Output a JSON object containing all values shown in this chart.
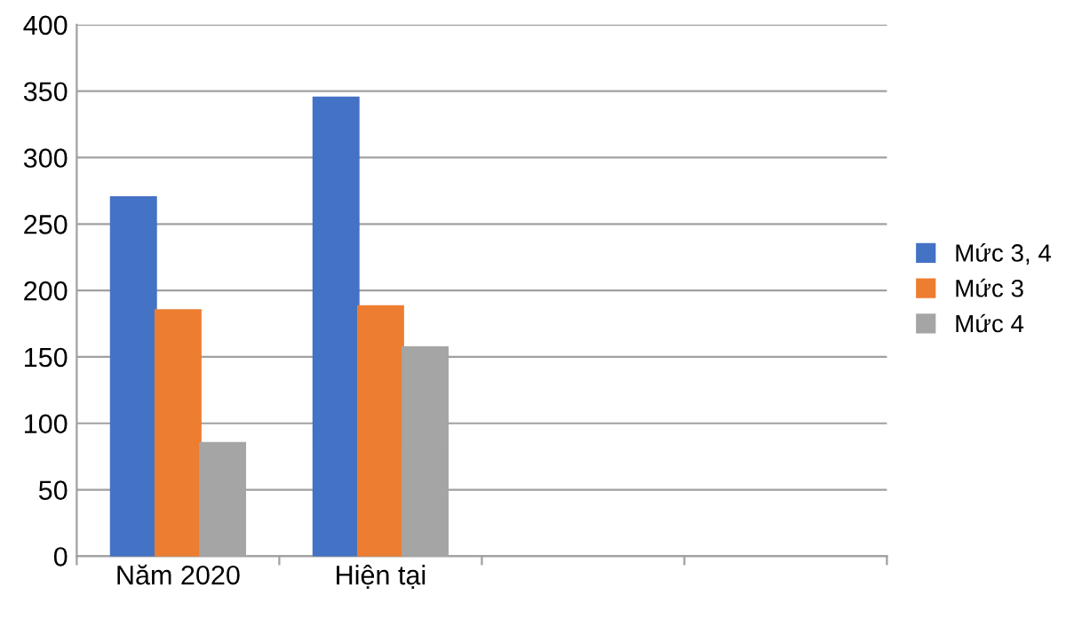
{
  "chart_data": {
    "type": "bar",
    "categories": [
      "Năm 2020",
      "Hiện tại",
      null,
      null
    ],
    "series": [
      {
        "name": "Mức 3, 4",
        "color": "#4472c4",
        "values": [
          270,
          345,
          null,
          null
        ]
      },
      {
        "name": "Mức 3",
        "color": "#ed7d31",
        "values": [
          185,
          188,
          null,
          null
        ]
      },
      {
        "name": "Mức 4",
        "color": "#a5a5a5",
        "values": [
          85,
          157,
          null,
          null
        ]
      }
    ],
    "ylim": [
      0,
      400
    ],
    "yticks": [
      0,
      50,
      100,
      150,
      200,
      250,
      300,
      350,
      400
    ],
    "grid": "y",
    "legend": "right"
  }
}
